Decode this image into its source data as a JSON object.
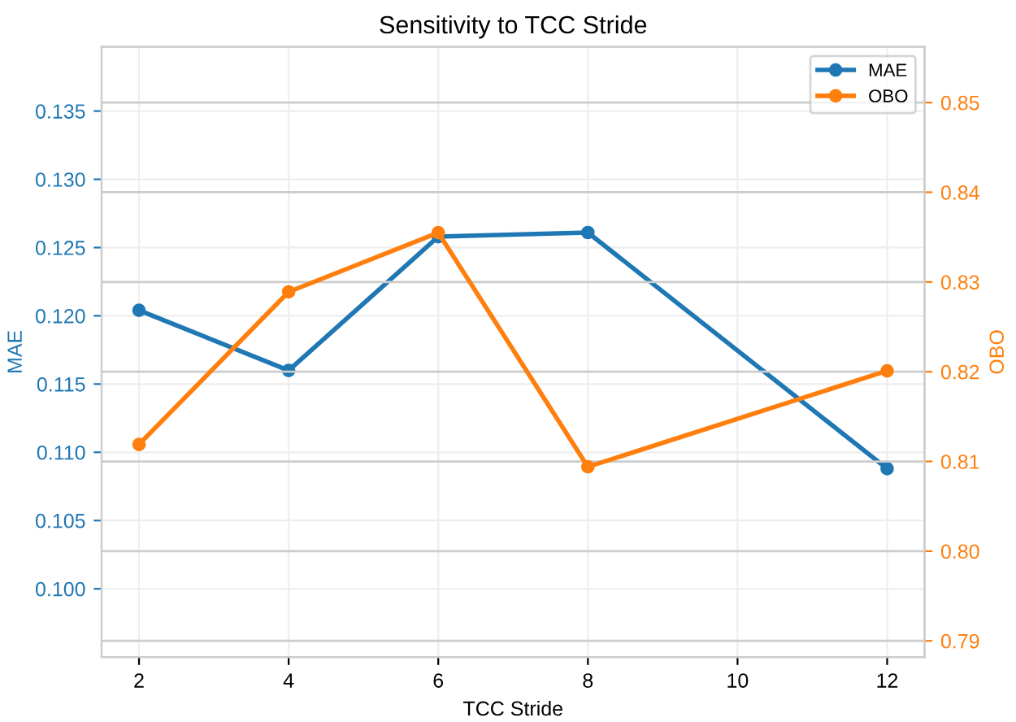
{
  "chart_data": {
    "type": "line",
    "title": "Sensitivity to TCC Stride",
    "xlabel": "TCC Stride",
    "ylabel": "MAE",
    "y2label": "OBO",
    "x": [
      2,
      4,
      6,
      8,
      12
    ],
    "series": [
      {
        "name": "MAE",
        "color": "#1f77b4",
        "values": [
          0.1204,
          0.116,
          0.1258,
          0.1261,
          0.1088
        ]
      },
      {
        "name": "OBO",
        "color": "#ff7f0e",
        "axis": "y2",
        "values": [
          0.8119,
          0.8289,
          0.8355,
          0.8094,
          0.8201
        ]
      }
    ],
    "xlim": [
      1.5,
      12.5
    ],
    "xticks": [
      2,
      4,
      6,
      8,
      10,
      12
    ],
    "ylim": [
      0.095,
      0.1397
    ],
    "yticks": [
      {
        "value": 0.1,
        "label": "0.100"
      },
      {
        "value": 0.105,
        "label": "0.105"
      },
      {
        "value": 0.11,
        "label": "0.110"
      },
      {
        "value": 0.115,
        "label": "0.115"
      },
      {
        "value": 0.12,
        "label": "0.120"
      },
      {
        "value": 0.125,
        "label": "0.125"
      },
      {
        "value": 0.13,
        "label": "0.130"
      },
      {
        "value": 0.135,
        "label": "0.135"
      }
    ],
    "y2lim": [
      0.7882,
      0.8562
    ],
    "y2ticks": [
      0.79,
      {
        "value": 0.8,
        "label": "0.80"
      },
      0.81,
      0.82,
      0.83,
      0.84,
      0.85
    ],
    "grid": true,
    "legend": "top right",
    "marker": "circle",
    "line_style": "solid"
  }
}
